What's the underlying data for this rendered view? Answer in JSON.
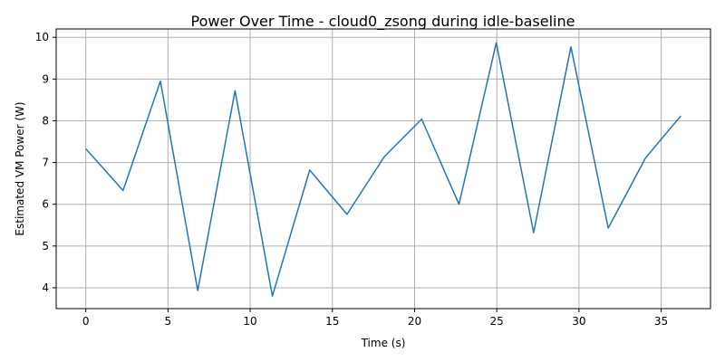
{
  "chart_data": {
    "type": "line",
    "title": "Power Over Time - cloud0_zsong during idle-baseline",
    "xlabel": "Time (s)",
    "ylabel": "Estimated VM Power (W)",
    "xlim": [
      -1.8,
      38.0
    ],
    "ylim": [
      3.5,
      10.2
    ],
    "xticks": [
      0,
      5,
      10,
      15,
      20,
      25,
      30,
      35
    ],
    "yticks": [
      4,
      5,
      6,
      7,
      8,
      9,
      10
    ],
    "grid": true,
    "color": "#1f77b4",
    "x": [
      0,
      2.27,
      4.54,
      6.81,
      9.08,
      11.35,
      13.62,
      15.89,
      18.16,
      20.43,
      22.7,
      24.97,
      27.24,
      29.51,
      31.78,
      34.05,
      36.2
    ],
    "y": [
      7.33,
      6.33,
      8.95,
      3.93,
      8.72,
      3.8,
      6.82,
      5.76,
      7.14,
      8.04,
      6.0,
      9.87,
      5.32,
      9.77,
      5.43,
      7.11,
      8.12
    ]
  }
}
